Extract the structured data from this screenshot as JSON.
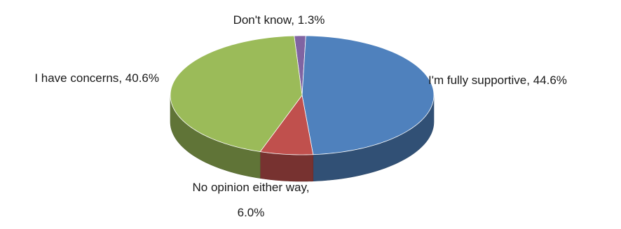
{
  "chart_data": {
    "type": "pie",
    "style": "3d",
    "title": "",
    "start_category": "Don't know",
    "direction": "clockwise",
    "slices": [
      {
        "label": "I'm fully supportive",
        "value": 44.6,
        "display": "I'm fully supportive, 44.6%",
        "color": "#4f81bd"
      },
      {
        "label": "No opinion either way",
        "value": 6.0,
        "display_lines": [
          "No opinion either way,",
          "6.0%"
        ],
        "color": "#c0504d"
      },
      {
        "label": "I have concerns",
        "value": 40.6,
        "display": "I have concerns, 40.6%",
        "color": "#9bbb59"
      },
      {
        "label": "Don't know",
        "value": 1.3,
        "display": "Don't know, 1.3%",
        "color": "#8064a2"
      }
    ]
  }
}
